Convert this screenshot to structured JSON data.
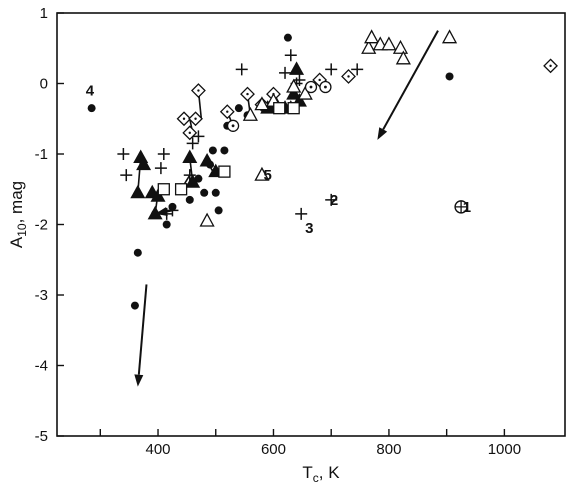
{
  "chart_data": {
    "type": "scatter",
    "title": "",
    "xlabel": {
      "main": "T",
      "sub": "c",
      "suffix": ", K"
    },
    "ylabel": {
      "main": "A",
      "sub": "10",
      "suffix": ", mag"
    },
    "xlim": [
      225,
      1105
    ],
    "ylim": [
      -5,
      1
    ],
    "xticks": [
      300,
      400,
      500,
      600,
      700,
      800,
      900,
      1000
    ],
    "xtick_labels": [
      {
        "x": 400,
        "text": "400"
      },
      {
        "x": 600,
        "text": "600"
      },
      {
        "x": 800,
        "text": "800"
      },
      {
        "x": 1000,
        "text": "1000"
      }
    ],
    "yticks": [
      1,
      0,
      -1,
      -2,
      -3,
      -4,
      -5
    ],
    "ytick_labels": [
      {
        "y": 1,
        "text": "1"
      },
      {
        "y": 0,
        "text": "0"
      },
      {
        "y": -1,
        "text": "-1"
      },
      {
        "y": -2,
        "text": "-2"
      },
      {
        "y": -3,
        "text": "-3"
      },
      {
        "y": -4,
        "text": "-4"
      },
      {
        "y": -5,
        "text": "-5"
      }
    ],
    "grid": false,
    "legend": "none",
    "marker_color": "#111111",
    "series": [
      {
        "marker": "filled-circle",
        "points": [
          [
            285,
            -0.35
          ],
          [
            365,
            -2.4
          ],
          [
            360,
            -3.15
          ],
          [
            395,
            -1.85
          ],
          [
            415,
            -2.0
          ],
          [
            425,
            -1.75
          ],
          [
            455,
            -1.65
          ],
          [
            470,
            -1.35
          ],
          [
            480,
            -1.55
          ],
          [
            490,
            -1.15
          ],
          [
            495,
            -0.95
          ],
          [
            500,
            -1.55
          ],
          [
            505,
            -1.8
          ],
          [
            515,
            -0.95
          ],
          [
            520,
            -0.6
          ],
          [
            540,
            -0.35
          ],
          [
            555,
            -0.45
          ],
          [
            625,
            0.65
          ],
          [
            905,
            0.1
          ]
        ]
      },
      {
        "marker": "filled-triangle",
        "points": [
          [
            370,
            -1.05
          ],
          [
            375,
            -1.15
          ],
          [
            365,
            -1.55
          ],
          [
            390,
            -1.55
          ],
          [
            395,
            -1.85
          ],
          [
            400,
            -1.6
          ],
          [
            455,
            -1.05
          ],
          [
            460,
            -1.4
          ],
          [
            485,
            -1.1
          ],
          [
            500,
            -1.25
          ],
          [
            590,
            -0.35
          ],
          [
            605,
            -0.3
          ],
          [
            620,
            -0.35
          ],
          [
            630,
            -0.35
          ],
          [
            635,
            -0.15
          ],
          [
            640,
            0.2
          ],
          [
            645,
            -0.25
          ]
        ]
      },
      {
        "marker": "plus",
        "points": [
          [
            340,
            -1.0
          ],
          [
            345,
            -1.3
          ],
          [
            405,
            -1.2
          ],
          [
            410,
            -1.0
          ],
          [
            415,
            -1.85
          ],
          [
            425,
            -1.8
          ],
          [
            455,
            -1.3
          ],
          [
            460,
            -0.85
          ],
          [
            470,
            -0.75
          ],
          [
            545,
            0.2
          ],
          [
            620,
            0.15
          ],
          [
            630,
            0.4
          ],
          [
            640,
            0.0
          ],
          [
            645,
            0.05
          ],
          [
            700,
            0.2
          ],
          [
            745,
            0.2
          ]
        ]
      },
      {
        "marker": "open-diamond",
        "points": [
          [
            445,
            -0.5
          ],
          [
            455,
            -0.7
          ],
          [
            465,
            -0.5
          ],
          [
            470,
            -0.1
          ],
          [
            520,
            -0.4
          ],
          [
            555,
            -0.15
          ],
          [
            580,
            -0.3
          ],
          [
            600,
            -0.15
          ],
          [
            680,
            0.05
          ],
          [
            730,
            0.1
          ],
          [
            1080,
            0.25
          ]
        ]
      },
      {
        "marker": "open-triangle",
        "points": [
          [
            485,
            -1.95
          ],
          [
            560,
            -0.45
          ],
          [
            580,
            -0.3
          ],
          [
            600,
            -0.25
          ],
          [
            635,
            -0.05
          ],
          [
            655,
            -0.15
          ],
          [
            765,
            0.5
          ],
          [
            770,
            0.65
          ],
          [
            785,
            0.55
          ],
          [
            800,
            0.55
          ],
          [
            820,
            0.5
          ],
          [
            825,
            0.35
          ],
          [
            905,
            0.65
          ]
        ]
      },
      {
        "marker": "open-square",
        "points": [
          [
            410,
            -1.5
          ],
          [
            440,
            -1.5
          ],
          [
            515,
            -1.25
          ],
          [
            610,
            -0.35
          ],
          [
            635,
            -0.35
          ]
        ]
      },
      {
        "marker": "dotted-circle",
        "points": [
          [
            530,
            -0.6
          ],
          [
            665,
            -0.05
          ],
          [
            690,
            -0.05
          ]
        ]
      }
    ],
    "connectors": [
      [
        [
          455,
          -0.5
        ],
        [
          460,
          -0.7
        ]
      ],
      [
        [
          470,
          -0.1
        ],
        [
          475,
          -0.5
        ]
      ],
      [
        [
          520,
          -0.4
        ],
        [
          530,
          -0.6
        ]
      ],
      [
        [
          555,
          -0.15
        ],
        [
          560,
          -0.45
        ]
      ],
      [
        [
          365,
          -1.55
        ],
        [
          370,
          -1.05
        ]
      ],
      [
        [
          395,
          -1.85
        ],
        [
          400,
          -1.55
        ]
      ],
      [
        [
          455,
          -1.05
        ],
        [
          460,
          -1.4
        ]
      ],
      [
        [
          485,
          -1.1
        ],
        [
          495,
          -1.25
        ]
      ],
      [
        [
          440,
          -1.5
        ],
        [
          455,
          -1.3
        ]
      ],
      [
        [
          590,
          -0.35
        ],
        [
          635,
          -0.35
        ]
      ]
    ],
    "arrows": [
      {
        "from": [
          380,
          -2.85
        ],
        "to": [
          365,
          -4.3
        ]
      },
      {
        "from": [
          885,
          0.75
        ],
        "to": [
          780,
          -0.8
        ]
      },
      {
        "from": [
          425,
          -1.8
        ],
        "to": [
          395,
          -1.85
        ]
      }
    ],
    "annotations": [
      {
        "label": "4",
        "x": 282,
        "y": -0.1
      },
      {
        "label": "5",
        "x": 590,
        "y": -1.3
      },
      {
        "label": "2",
        "x": 705,
        "y": -1.65
      },
      {
        "label": "3",
        "x": 662,
        "y": -2.05
      },
      {
        "label": "1",
        "x": 935,
        "y": -1.75
      }
    ],
    "labeled_points": [
      {
        "marker": "plus",
        "x": 580,
        "y": -1.3,
        "note": "5 (open triangle)"
      },
      {
        "marker": "plus",
        "x": 700,
        "y": -1.65
      },
      {
        "marker": "plus",
        "x": 648,
        "y": -1.85
      },
      {
        "marker": "circled-plus",
        "x": 925,
        "y": -1.75
      }
    ]
  }
}
